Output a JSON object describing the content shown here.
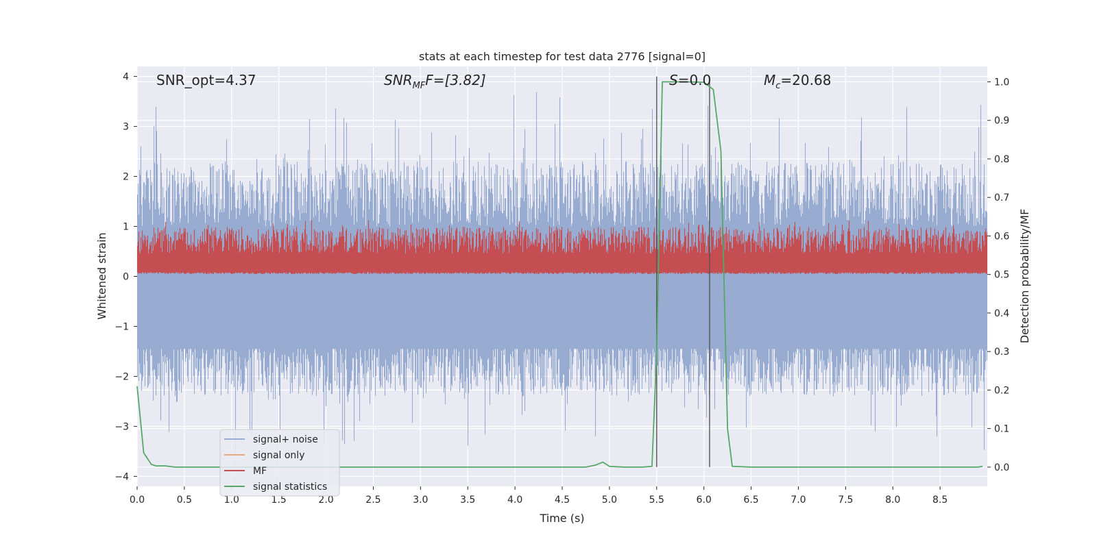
{
  "chart_data": {
    "type": "line",
    "title": "stats at each timestep for test data 2776 [signal=0]",
    "xlabel": "Time (s)",
    "ylabel_left": "Whitened strain",
    "ylabel_right": "Detection probability/MF",
    "xlim": [
      0,
      9
    ],
    "ylim_left": [
      -4.2,
      4.2
    ],
    "ylim_right": [
      -0.05,
      1.04
    ],
    "x_ticks": [
      "0.0",
      "0.5",
      "1.0",
      "1.5",
      "2.0",
      "2.5",
      "3.0",
      "3.5",
      "4.0",
      "4.5",
      "5.0",
      "5.5",
      "6.0",
      "6.5",
      "7.0",
      "7.5",
      "8.0",
      "8.5"
    ],
    "x_tick_values": [
      0,
      0.5,
      1,
      1.5,
      2,
      2.5,
      3,
      3.5,
      4,
      4.5,
      5,
      5.5,
      6,
      6.5,
      7,
      7.5,
      8,
      8.5
    ],
    "y_ticks_left": [
      "4",
      "3",
      "2",
      "1",
      "0",
      "−1",
      "−2",
      "−3",
      "−4"
    ],
    "y_tick_values_left": [
      4,
      3,
      2,
      1,
      0,
      -1,
      -2,
      -3,
      -4
    ],
    "y_ticks_right": [
      "1.0",
      "0.9",
      "0.8",
      "0.7",
      "0.6",
      "0.5",
      "0.4",
      "0.3",
      "0.2",
      "0.1",
      "0.0"
    ],
    "y_tick_values_right": [
      1.0,
      0.9,
      0.8,
      0.7,
      0.6,
      0.5,
      0.4,
      0.3,
      0.2,
      0.1,
      0.0
    ],
    "annotations": {
      "snr_opt": "SNR_opt=4.37",
      "snr_mf_base": "SNR",
      "snr_mf_sub": "MF",
      "snr_mf_rest": "F=[3.82]",
      "s_label": "S",
      "s_value": "=0.0",
      "mc_base": "M",
      "mc_sub": "c",
      "mc_value": "=20.68"
    },
    "vlines": [
      5.5,
      6.06
    ],
    "vline_top": 4.0,
    "series": [
      {
        "name": "signal+ noise",
        "color": "#98abd0",
        "description": "whitened strain noise, approx range -3.6 to 4.0"
      },
      {
        "name": "signal only",
        "color": "#e8a688",
        "values": []
      },
      {
        "name": "MF",
        "color": "#c44e52",
        "description": "matched-filter output, approx range 0.0 to 0.95"
      },
      {
        "name": "signal statistics",
        "color": "#55a868",
        "x": [
          0.0,
          0.07,
          0.15,
          0.2,
          0.3,
          0.4,
          1.0,
          2.0,
          3.0,
          4.0,
          4.55,
          4.75,
          4.85,
          4.93,
          5.0,
          5.15,
          5.35,
          5.45,
          5.5,
          5.56,
          5.8,
          6.0,
          6.1,
          6.18,
          6.25,
          6.3,
          6.5,
          7.0,
          8.0,
          8.9,
          8.95
        ],
        "values": [
          0.21,
          0.037,
          0.007,
          0.003,
          0.003,
          0.0,
          0.0,
          0.0,
          0.0,
          0.0,
          0.0,
          0.0,
          0.005,
          0.013,
          0.002,
          0.0,
          0.0,
          0.002,
          0.3,
          1.0,
          1.0,
          0.999,
          0.98,
          0.82,
          0.1,
          0.002,
          0.0,
          0.0,
          0.0,
          0.0,
          0.002
        ]
      }
    ],
    "legend": {
      "position": "lower-left",
      "items": [
        "signal+ noise",
        "signal only",
        "MF",
        "signal statistics"
      ]
    },
    "grid": true,
    "background": "#eaeaf2"
  }
}
